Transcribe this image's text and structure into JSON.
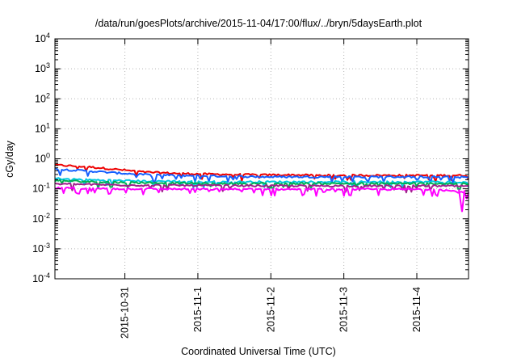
{
  "chart_data": {
    "type": "line",
    "title": "/data/run/goesPlots/archive/2015-11-04/17:00/flux/../bryn/5daysEarth.plot",
    "xlabel": "Coordinated Universal Time (UTC)",
    "ylabel": "cGy/day",
    "yscale": "log",
    "ylim": [
      0.0001,
      10000
    ],
    "y_ticks": [
      {
        "value": 0.0001,
        "base": "10",
        "exp": "-4"
      },
      {
        "value": 0.001,
        "base": "10",
        "exp": "-3"
      },
      {
        "value": 0.01,
        "base": "10",
        "exp": "-2"
      },
      {
        "value": 0.1,
        "base": "10",
        "exp": "-1"
      },
      {
        "value": 1,
        "base": "10",
        "exp": "0"
      },
      {
        "value": 10,
        "base": "10",
        "exp": "1"
      },
      {
        "value": 100,
        "base": "10",
        "exp": "2"
      },
      {
        "value": 1000,
        "base": "10",
        "exp": "3"
      },
      {
        "value": 10000,
        "base": "10",
        "exp": "4"
      }
    ],
    "xlim": [
      "2015-10-30 01:00",
      "2015-11-04 17:00"
    ],
    "x_ticks": [
      "2015-10-31",
      "2015-11-1",
      "2015-11-2",
      "2015-11-3",
      "2015-11-4"
    ],
    "grid": true,
    "legend": "none",
    "series": [
      {
        "color": "#ee0000",
        "values": [
          0.62,
          0.55,
          0.45,
          0.36,
          0.33,
          0.31,
          0.3,
          0.29,
          0.29,
          0.28,
          0.28,
          0.28,
          0.28,
          0.28,
          0.28
        ]
      },
      {
        "color": "#1560ff",
        "values": [
          0.45,
          0.4,
          0.34,
          0.3,
          0.28,
          0.27,
          0.26,
          0.25,
          0.25,
          0.25,
          0.25,
          0.25,
          0.25,
          0.25,
          0.24
        ]
      },
      {
        "color": "#00c8e0",
        "values": [
          0.22,
          0.2,
          0.19,
          0.18,
          0.18,
          0.17,
          0.17,
          0.17,
          0.17,
          0.17,
          0.17,
          0.17,
          0.17,
          0.17,
          0.16
        ]
      },
      {
        "color": "#00b050",
        "values": [
          0.19,
          0.175,
          0.165,
          0.16,
          0.155,
          0.15,
          0.15,
          0.15,
          0.15,
          0.15,
          0.15,
          0.15,
          0.15,
          0.15,
          0.145
        ]
      },
      {
        "color": "#a0208c",
        "values": [
          0.145,
          0.14,
          0.135,
          0.13,
          0.13,
          0.128,
          0.127,
          0.126,
          0.125,
          0.125,
          0.125,
          0.125,
          0.125,
          0.125,
          0.12
        ]
      },
      {
        "color": "#ff00ff",
        "values": [
          0.105,
          0.103,
          0.1,
          0.1,
          0.098,
          0.097,
          0.097,
          0.097,
          0.096,
          0.096,
          0.096,
          0.096,
          0.096,
          0.095,
          0.07
        ]
      }
    ]
  }
}
